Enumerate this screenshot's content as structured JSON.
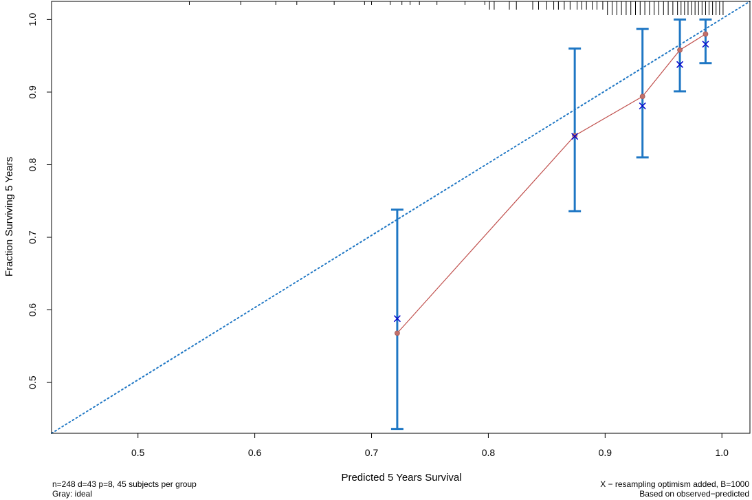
{
  "chart_data": {
    "type": "scatter",
    "title": "",
    "xlabel": "Predicted 5 Years Survival",
    "ylabel": "Fraction Surviving 5 Years",
    "xlim": [
      0.426,
      1.024
    ],
    "ylim": [
      0.43,
      1.025
    ],
    "xticks": [
      "0.5",
      "0.6",
      "0.7",
      "0.8",
      "0.9",
      "1.0"
    ],
    "yticks": [
      "0.5",
      "0.6",
      "0.7",
      "0.8",
      "0.9",
      "1.0"
    ],
    "grid": false,
    "series": [
      {
        "role": "observed",
        "color": "#c0504d",
        "points": [
          {
            "x": 0.722,
            "y": 0.568
          },
          {
            "x": 0.874,
            "y": 0.84
          },
          {
            "x": 0.932,
            "y": 0.894
          },
          {
            "x": 0.964,
            "y": 0.958
          },
          {
            "x": 0.986,
            "y": 0.98
          }
        ]
      },
      {
        "role": "bias-corrected",
        "color": "#0000cc",
        "points": [
          {
            "x": 0.722,
            "y": 0.588
          },
          {
            "x": 0.874,
            "y": 0.839
          },
          {
            "x": 0.932,
            "y": 0.881
          },
          {
            "x": 0.964,
            "y": 0.938
          },
          {
            "x": 0.986,
            "y": 0.966
          }
        ]
      }
    ],
    "error_bars": {
      "color": "#1f77c4",
      "bars": [
        {
          "x": 0.722,
          "low": 0.436,
          "high": 0.738
        },
        {
          "x": 0.874,
          "low": 0.736,
          "high": 0.96
        },
        {
          "x": 0.932,
          "low": 0.81,
          "high": 0.987
        },
        {
          "x": 0.964,
          "low": 0.901,
          "high": 1.0
        },
        {
          "x": 0.986,
          "low": 0.94,
          "high": 1.0
        }
      ]
    },
    "ideal_line": {
      "color": "#1f77c4",
      "from": [
        0.426,
        0.43
      ],
      "to": [
        1.024,
        1.025
      ]
    },
    "rug": [
      0.544,
      0.588,
      0.618,
      0.636,
      0.668,
      0.694,
      0.7,
      0.716,
      0.726,
      0.733,
      0.741,
      0.756,
      0.78,
      0.797,
      0.801,
      0.805,
      0.818,
      0.824,
      0.838,
      0.843,
      0.85,
      0.856,
      0.86,
      0.865,
      0.87,
      0.876,
      0.88,
      0.884,
      0.889,
      0.893,
      0.898,
      0.902,
      0.906,
      0.91,
      0.914,
      0.918,
      0.922,
      0.926,
      0.93,
      0.934,
      0.938,
      0.942,
      0.946,
      0.95,
      0.954,
      0.958,
      0.962,
      0.965,
      0.968,
      0.971,
      0.974,
      0.977,
      0.98,
      0.983,
      0.986,
      0.989,
      0.992,
      0.995,
      0.998,
      1.001
    ],
    "footnote_left": [
      "n=248 d=43 p=8, 45 subjects per group",
      "Gray: ideal"
    ],
    "footnote_right": [
      "X − resampling optimism added, B=1000",
      "Based on observed−predicted"
    ]
  }
}
